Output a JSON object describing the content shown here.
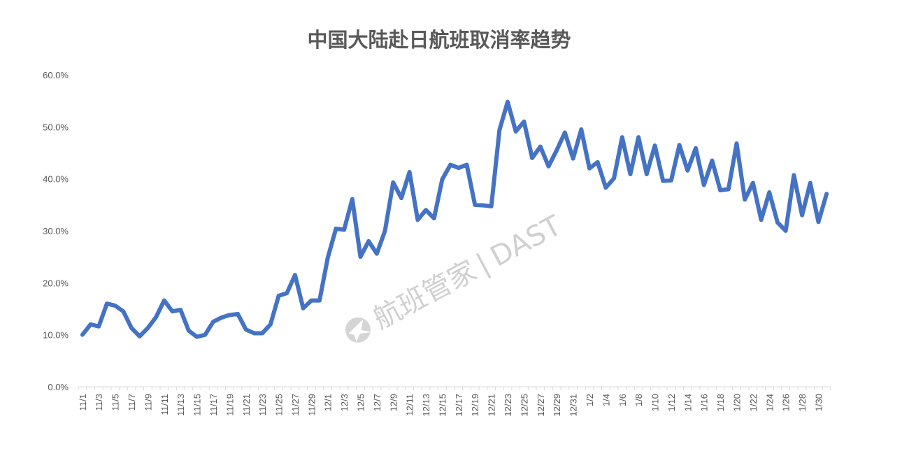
{
  "chart_data": {
    "type": "line",
    "title": "中国大陆赴日航班取消率趋势",
    "xlabel": "",
    "ylabel": "",
    "ylim": [
      0,
      60
    ],
    "ytick_labels": [
      "0.0%",
      "10.0%",
      "20.0%",
      "30.0%",
      "40.0%",
      "50.0%",
      "60.0%"
    ],
    "grid": false,
    "legend": "none",
    "line_color": "#4472C4",
    "tick_labels_shown_every": 2,
    "x": [
      "11/1",
      "11/2",
      "11/3",
      "11/4",
      "11/5",
      "11/6",
      "11/7",
      "11/8",
      "11/9",
      "11/10",
      "11/11",
      "11/12",
      "11/13",
      "11/14",
      "11/15",
      "11/16",
      "11/17",
      "11/18",
      "11/19",
      "11/20",
      "11/21",
      "11/22",
      "11/23",
      "11/24",
      "11/25",
      "11/26",
      "11/27",
      "11/28",
      "11/29",
      "11/30",
      "12/1",
      "12/2",
      "12/3",
      "12/4",
      "12/5",
      "12/6",
      "12/7",
      "12/8",
      "12/9",
      "12/10",
      "12/11",
      "12/12",
      "12/13",
      "12/14",
      "12/15",
      "12/16",
      "12/17",
      "12/18",
      "12/19",
      "12/20",
      "12/21",
      "12/22",
      "12/23",
      "12/24",
      "12/25",
      "12/26",
      "12/27",
      "12/28",
      "12/29",
      "12/30",
      "12/31",
      "1/1",
      "1/2",
      "1/3",
      "1/4",
      "1/5",
      "1/6",
      "1/7",
      "1/8",
      "1/9",
      "1/10",
      "1/11",
      "1/12",
      "1/13",
      "1/14",
      "1/15",
      "1/16",
      "1/17",
      "1/18",
      "1/19",
      "1/20",
      "1/21",
      "1/22",
      "1/23",
      "1/24",
      "1/25",
      "1/26",
      "1/27",
      "1/28",
      "1/29",
      "1/30",
      "1/31"
    ],
    "values": [
      10.0,
      12.0,
      11.6,
      16.0,
      15.6,
      14.5,
      11.3,
      9.7,
      11.3,
      13.4,
      16.6,
      14.5,
      14.8,
      10.8,
      9.6,
      10.0,
      12.5,
      13.3,
      13.8,
      14.0,
      11.0,
      10.3,
      10.3,
      12.0,
      17.5,
      18.0,
      21.5,
      15.1,
      16.6,
      16.6,
      24.8,
      30.4,
      30.2,
      36.1,
      25.0,
      28.0,
      25.6,
      30.0,
      39.3,
      36.3,
      41.3,
      32.1,
      34.0,
      32.4,
      39.9,
      42.7,
      42.1,
      42.7,
      35.0,
      34.9,
      34.7,
      49.4,
      54.8,
      49.1,
      51.0,
      44.0,
      46.2,
      42.4,
      45.5,
      48.9,
      43.9,
      49.5,
      42.0,
      43.2,
      38.3,
      40.1,
      48.0,
      40.9,
      48.0,
      40.9,
      46.4,
      39.6,
      39.7,
      46.5,
      41.6,
      45.9,
      38.8,
      43.5,
      37.8,
      38.0,
      46.8,
      36.0,
      39.2,
      32.1,
      37.4,
      31.6,
      30.0,
      40.7,
      33.0,
      39.2,
      31.7,
      37.1
    ]
  },
  "watermark": {
    "brand_text": "航班管家",
    "separator": "|",
    "code_text": "DAST",
    "icon": "plane-globe-icon"
  }
}
